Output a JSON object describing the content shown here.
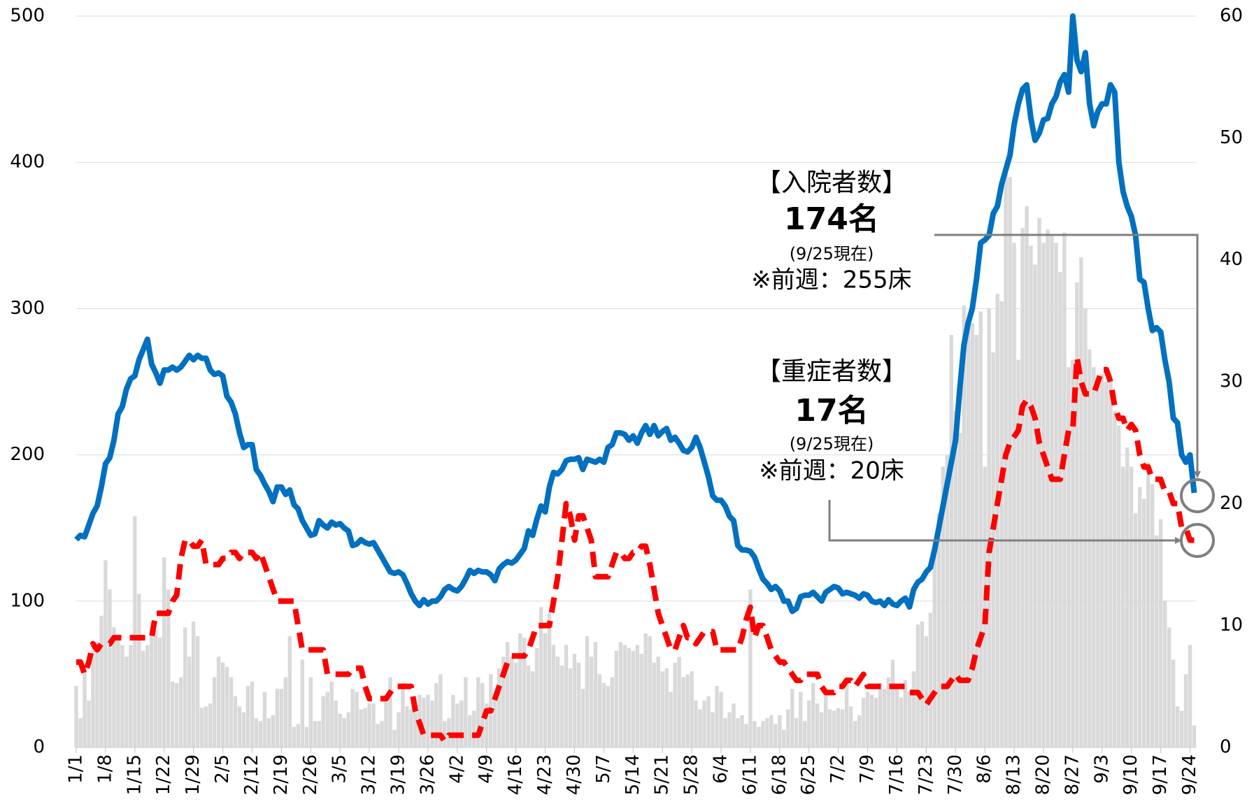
{
  "chart_data": {
    "type": "combo",
    "categories": [
      "1/1",
      null,
      null,
      null,
      null,
      null,
      null,
      "1/8",
      null,
      null,
      null,
      null,
      null,
      null,
      "1/15",
      null,
      null,
      null,
      null,
      null,
      null,
      "1/22",
      null,
      null,
      null,
      null,
      null,
      null,
      "1/29",
      null,
      null,
      null,
      null,
      null,
      null,
      "2/5",
      null,
      null,
      null,
      null,
      null,
      null,
      "2/12",
      null,
      null,
      null,
      null,
      null,
      null,
      "2/19",
      null,
      null,
      null,
      null,
      null,
      null,
      "2/26",
      null,
      null,
      null,
      null,
      null,
      null,
      "3/5",
      null,
      null,
      null,
      null,
      null,
      null,
      "3/12",
      null,
      null,
      null,
      null,
      null,
      null,
      "3/19",
      null,
      null,
      null,
      null,
      null,
      null,
      "3/26",
      null,
      null,
      null,
      null,
      null,
      null,
      "4/2",
      null,
      null,
      null,
      null,
      null,
      null,
      "4/9",
      null,
      null,
      null,
      null,
      null,
      null,
      "4/16",
      null,
      null,
      null,
      null,
      null,
      null,
      "4/23",
      null,
      null,
      null,
      null,
      null,
      null,
      "4/30",
      null,
      null,
      null,
      null,
      null,
      null,
      "5/7",
      null,
      null,
      null,
      null,
      null,
      null,
      "5/14",
      null,
      null,
      null,
      null,
      null,
      null,
      "5/21",
      null,
      null,
      null,
      null,
      null,
      null,
      "5/28",
      null,
      null,
      null,
      null,
      null,
      null,
      "6/4",
      null,
      null,
      null,
      null,
      null,
      null,
      "6/11",
      null,
      null,
      null,
      null,
      null,
      null,
      "6/18",
      null,
      null,
      null,
      null,
      null,
      null,
      "6/25",
      null,
      null,
      null,
      null,
      null,
      null,
      "7/2",
      null,
      null,
      null,
      null,
      null,
      null,
      "7/9",
      null,
      null,
      null,
      null,
      null,
      null,
      "7/16",
      null,
      null,
      null,
      null,
      null,
      null,
      "7/23",
      null,
      null,
      null,
      null,
      null,
      null,
      "7/30",
      null,
      null,
      null,
      null,
      null,
      null,
      "8/6",
      null,
      null,
      null,
      null,
      null,
      null,
      "8/13",
      null,
      null,
      null,
      null,
      null,
      null,
      "8/20",
      null,
      null,
      null,
      null,
      null,
      null,
      "8/27",
      null,
      null,
      null,
      null,
      null,
      null,
      "9/3",
      null,
      null,
      null,
      null,
      null,
      null,
      "9/10",
      null,
      null,
      null,
      null,
      null,
      null,
      "9/17",
      null,
      null,
      null,
      null,
      null,
      null,
      "9/24",
      null
    ],
    "series": [
      {
        "type": "bar",
        "color": "#d9d9d9",
        "axis": "y",
        "values": [
          42,
          20,
          52,
          32,
          68,
          72,
          90,
          128,
          108,
          82,
          75,
          70,
          62,
          70,
          158,
          105,
          66,
          70,
          82,
          80,
          75,
          130,
          108,
          45,
          44,
          48,
          82,
          62,
          86,
          76,
          27,
          28,
          30,
          48,
          62,
          58,
          55,
          48,
          35,
          28,
          24,
          42,
          45,
          20,
          18,
          38,
          20,
          22,
          40,
          40,
          48,
          76,
          14,
          16,
          60,
          14,
          48,
          18,
          18,
          35,
          38,
          45,
          32,
          23,
          20,
          24,
          40,
          38,
          26,
          27,
          30,
          30,
          16,
          18,
          32,
          48,
          12,
          24,
          44,
          28,
          26,
          24,
          36,
          34,
          36,
          32,
          44,
          50,
          18,
          20,
          36,
          30,
          32,
          48,
          22,
          25,
          48,
          44,
          30,
          50,
          36,
          54,
          62,
          72,
          62,
          58,
          78,
          75,
          56,
          52,
          68,
          96,
          78,
          92,
          70,
          62,
          56,
          70,
          54,
          64,
          58,
          40,
          76,
          62,
          72,
          50,
          44,
          42,
          48,
          66,
          72,
          70,
          68,
          66,
          70,
          64,
          78,
          76,
          58,
          62,
          52,
          54,
          38,
          58,
          62,
          48,
          50,
          52,
          32,
          26,
          32,
          35,
          24,
          42,
          38,
          20,
          24,
          30,
          20,
          22,
          16,
          108,
          18,
          14,
          18,
          20,
          22,
          16,
          22,
          12,
          26,
          40,
          20,
          38,
          18,
          32,
          44,
          30,
          24,
          40,
          26,
          25,
          27,
          26,
          46,
          28,
          18,
          22,
          34,
          38,
          36,
          34,
          44,
          40,
          48,
          60,
          42,
          34,
          46,
          38,
          52,
          84,
          86,
          76,
          92,
          136,
          160,
          192,
          200,
          282,
          230,
          215,
          302,
          290,
          290,
          282,
          298,
          192,
          300,
          270,
          310,
          305,
          395,
          390,
          345,
          265,
          355,
          370,
          343,
          330,
          362,
          345,
          354,
          350,
          345,
          325,
          352,
          260,
          265,
          318,
          335,
          300,
          272,
          260,
          250,
          255,
          250,
          255,
          230,
          220,
          192,
          205,
          192,
          160,
          178,
          170,
          195,
          180,
          145,
          156,
          100,
          82,
          60,
          28,
          25,
          50,
          70,
          15
        ]
      },
      {
        "type": "line",
        "color": "#0070c0",
        "axis": "y",
        "values": [
          142,
          145,
          144,
          152,
          160,
          165,
          178,
          194,
          198,
          210,
          228,
          233,
          245,
          252,
          254,
          265,
          272,
          279,
          262,
          256,
          249,
          258,
          258,
          260,
          258,
          260,
          264,
          268,
          265,
          268,
          266,
          266,
          258,
          255,
          256,
          254,
          240,
          236,
          228,
          215,
          205,
          207,
          207,
          190,
          186,
          180,
          175,
          168,
          178,
          178,
          173,
          176,
          166,
          163,
          155,
          150,
          145,
          146,
          155,
          152,
          150,
          154,
          152,
          153,
          150,
          148,
          138,
          139,
          142,
          140,
          139,
          140,
          135,
          130,
          125,
          120,
          119,
          120,
          118,
          112,
          105,
          100,
          97,
          101,
          98,
          100,
          100,
          103,
          108,
          110,
          108,
          107,
          110,
          115,
          121,
          119,
          121,
          120,
          120,
          118,
          114,
          122,
          125,
          127,
          126,
          128,
          132,
          136,
          148,
          145,
          156,
          165,
          161,
          178,
          188,
          187,
          190,
          196,
          197,
          197,
          198,
          190,
          197,
          196,
          195,
          197,
          195,
          205,
          207,
          215,
          215,
          214,
          210,
          213,
          208,
          215,
          220,
          214,
          220,
          213,
          216,
          218,
          210,
          212,
          208,
          203,
          202,
          205,
          212,
          205,
          195,
          185,
          172,
          169,
          169,
          165,
          158,
          155,
          138,
          135,
          135,
          134,
          130,
          122,
          115,
          112,
          108,
          110,
          107,
          100,
          100,
          93,
          95,
          103,
          104,
          104,
          106,
          103,
          100,
          106,
          108,
          110,
          109,
          105,
          106,
          105,
          104,
          102,
          105,
          104,
          100,
          99,
          100,
          97,
          101,
          98,
          97,
          100,
          102,
          96,
          108,
          113,
          115,
          120,
          123,
          135,
          150,
          165,
          180,
          195,
          210,
          245,
          275,
          290,
          300,
          320,
          345,
          347,
          350,
          365,
          370,
          385,
          395,
          405,
          426,
          440,
          450,
          453,
          430,
          415,
          420,
          429,
          430,
          440,
          445,
          455,
          460,
          448,
          500,
          470,
          462,
          475,
          440,
          425,
          435,
          440,
          440,
          453,
          448,
          400,
          380,
          370,
          363,
          350,
          320,
          318,
          300,
          285,
          287,
          284,
          265,
          250,
          225,
          222,
          200,
          195,
          200,
          174
        ]
      },
      {
        "type": "line",
        "color": "#ff0000",
        "axis": "y2",
        "dashed": true,
        "values": [
          7,
          7,
          6,
          7,
          8.5,
          8,
          8.5,
          8.5,
          8.5,
          9,
          9,
          9,
          9,
          9,
          9,
          9,
          9,
          9,
          9,
          11,
          11,
          11,
          11,
          12,
          12.5,
          15.5,
          17,
          17,
          16.5,
          16.5,
          17,
          15,
          15,
          15,
          15,
          15.5,
          15.5,
          16,
          16,
          15.5,
          16,
          16,
          16,
          15.5,
          16,
          15,
          14,
          13,
          12,
          12,
          12,
          12,
          12,
          10,
          8,
          8,
          8,
          8,
          8,
          8,
          6,
          6,
          6,
          6,
          6,
          6,
          6.5,
          6.5,
          6.5,
          5,
          4,
          4,
          4,
          4,
          4,
          4.5,
          5,
          5,
          5,
          5,
          5,
          3,
          2,
          1,
          1,
          1,
          1,
          1,
          0.5,
          1,
          1,
          1,
          1,
          1,
          1,
          1,
          1,
          2,
          3,
          3,
          4,
          5,
          6,
          7,
          7.5,
          7.5,
          7.5,
          7.5,
          8,
          9,
          10,
          10,
          10,
          10,
          12,
          14,
          17,
          20,
          19,
          17,
          19,
          19,
          18,
          17,
          14,
          14,
          14,
          14,
          15,
          16,
          16,
          15.5,
          15.5,
          16,
          16,
          16.5,
          16.5,
          15,
          13,
          11,
          10,
          9,
          8,
          8,
          9,
          10,
          9,
          9,
          8.5,
          9,
          9.5,
          9.5,
          9.5,
          8,
          8,
          8,
          8,
          8,
          8,
          9,
          10.5,
          11.5,
          9,
          10,
          10,
          9,
          8,
          7.5,
          7,
          7,
          6.5,
          6,
          5.5,
          5.5,
          6,
          6,
          6,
          6,
          5,
          4.5,
          4.5,
          4.5,
          5,
          5,
          5.5,
          5.5,
          5,
          5.5,
          6,
          5,
          5,
          5,
          5,
          5,
          5,
          5,
          5,
          5,
          5,
          4.5,
          4.5,
          4.5,
          4,
          3.5,
          4,
          4.5,
          5,
          5,
          5,
          5.5,
          6,
          5.5,
          5.5,
          5.5,
          6.5,
          8,
          9,
          10,
          16,
          18,
          20,
          22,
          24,
          25,
          25.5,
          26,
          28,
          28.5,
          28,
          27,
          25,
          24,
          23,
          22,
          22,
          22,
          24,
          26,
          26,
          32,
          30,
          29,
          29,
          29,
          30,
          31,
          31,
          30,
          28,
          27,
          27,
          26,
          26.5,
          26,
          24,
          23,
          23,
          22,
          22,
          22,
          21,
          21,
          20,
          20,
          18,
          18,
          17,
          17
        ]
      }
    ],
    "ylim": [
      0,
      500
    ],
    "yticks": [
      0,
      100,
      200,
      300,
      400,
      500
    ],
    "y2lim": [
      0,
      60
    ],
    "y2ticks": [
      0,
      10,
      20,
      30,
      40,
      50,
      60
    ],
    "grid": true,
    "annotations": {
      "hospital": {
        "heading": "【入院者数】",
        "value": "174名",
        "date": "(9/25現在)",
        "previous": "※前週：255床"
      },
      "severe": {
        "heading": "【重症者数】",
        "value": "17名",
        "date": "(9/25現在)",
        "previous": "※前週：20床"
      }
    }
  }
}
